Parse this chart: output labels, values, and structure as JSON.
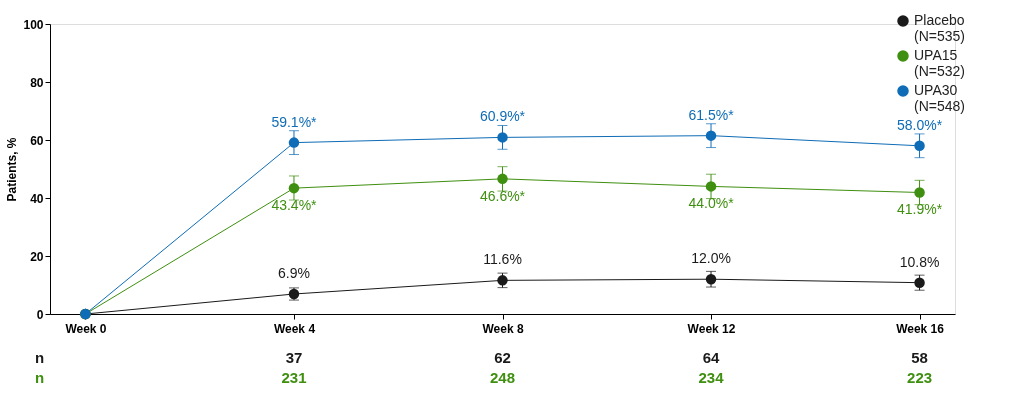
{
  "chart_data": {
    "type": "line",
    "ylabel": "Patients, %",
    "categories": [
      "Week 0",
      "Week 4",
      "Week 8",
      "Week 12",
      "Week 16"
    ],
    "ylim": [
      0,
      100
    ],
    "yticks": [
      0,
      20,
      40,
      60,
      80,
      100
    ],
    "grid": false,
    "legend": "top right",
    "marker": "circle",
    "line_style": "solid",
    "series": [
      {
        "name": "Placebo\n(N=535)",
        "color": "#1a1a1a",
        "values": [
          0,
          6.9,
          11.6,
          12.0,
          10.8
        ],
        "errors": [
          null,
          [
            4.8,
            9.0
          ],
          [
            9.1,
            14.1
          ],
          [
            9.3,
            14.7
          ],
          [
            8.2,
            13.4
          ]
        ],
        "value_labels": [
          null,
          "6.9%",
          "11.6%",
          "12.0%",
          "10.8%"
        ]
      },
      {
        "name": "UPA15\n(N=532)",
        "color": "#3f8f10",
        "values": [
          0,
          43.4,
          46.6,
          44.0,
          41.9
        ],
        "errors": [
          null,
          [
            39.3,
            47.6
          ],
          [
            42.4,
            50.8
          ],
          [
            39.8,
            48.2
          ],
          [
            37.7,
            46.1
          ]
        ],
        "value_labels": [
          null,
          "43.4%*",
          "46.6%*",
          "44.0%*",
          "41.9%*"
        ]
      },
      {
        "name": "UPA30\n(N=548)",
        "color": "#0f6cb6",
        "values": [
          0,
          59.1,
          60.9,
          61.5,
          58.0
        ],
        "errors": [
          null,
          [
            55.0,
            63.2
          ],
          [
            56.8,
            65.0
          ],
          [
            57.4,
            65.6
          ],
          [
            53.9,
            62.1
          ]
        ],
        "value_labels": [
          null,
          "59.1%*",
          "60.9%*",
          "61.5%*",
          "58.0%*"
        ]
      }
    ],
    "annotations": [
      "n",
      "37",
      "62",
      "64",
      "58",
      "n",
      "231",
      "248",
      "234",
      "223"
    ]
  }
}
